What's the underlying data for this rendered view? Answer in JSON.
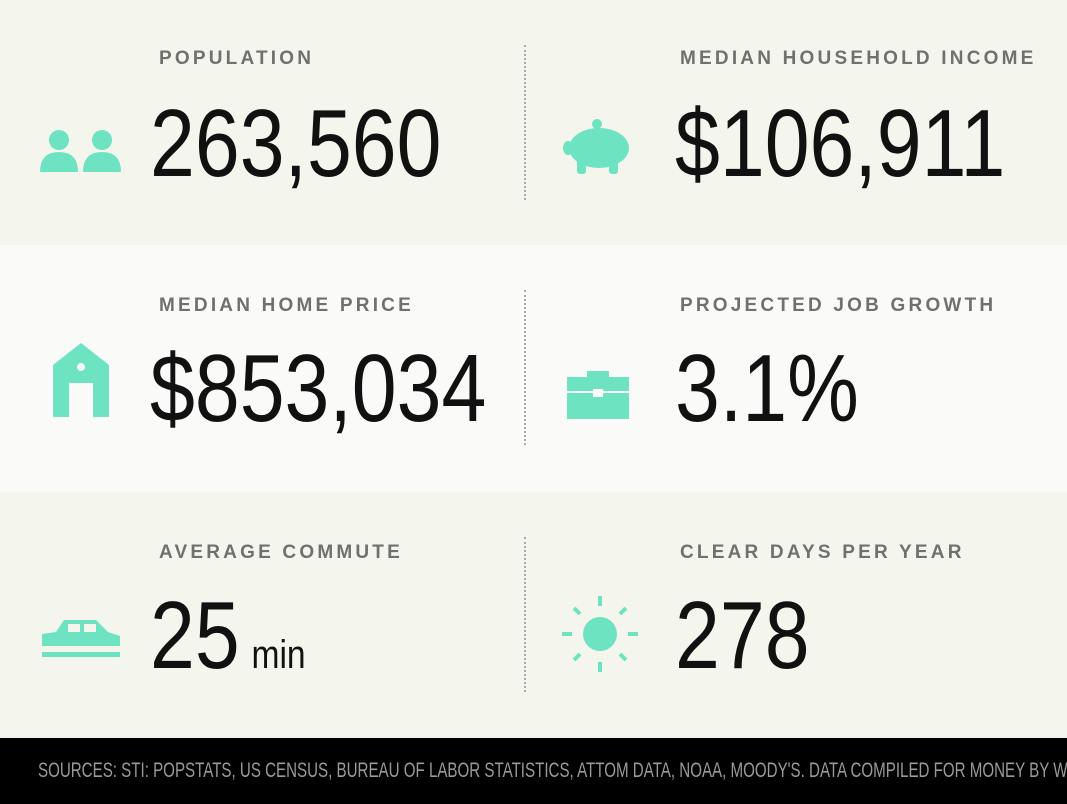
{
  "stats": [
    {
      "label": "POPULATION",
      "value": "263,560"
    },
    {
      "label": "MEDIAN HOUSEHOLD INCOME",
      "value": "$106,911"
    },
    {
      "label": "MEDIAN HOME PRICE",
      "value": "$853,034"
    },
    {
      "label": "PROJECTED JOB GROWTH",
      "value": "3.1%"
    },
    {
      "label": "AVERAGE COMMUTE",
      "value": "25",
      "unit": "min"
    },
    {
      "label": "CLEAR DAYS PER YEAR",
      "value": "278"
    }
  ],
  "footer": {
    "sources": "SOURCES: STI: POPSTATS, US CENSUS, BUREAU OF LABOR STATISTICS, ATTOM DATA, NOAA, MOODY'S. DATA COMPILED FOR MONEY BY WITLYTIC."
  }
}
